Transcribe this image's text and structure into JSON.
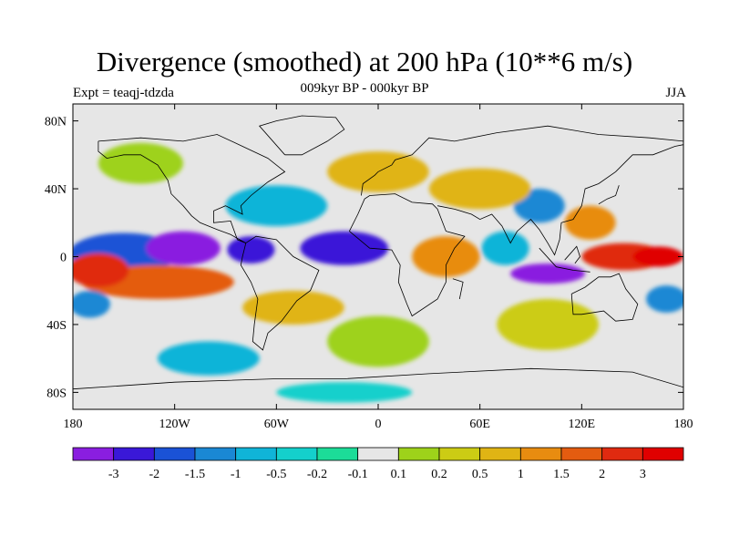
{
  "title": "Divergence (smoothed) at 200 hPa (10**6 m/s)",
  "subtitle": "009kyr BP - 000kyr BP",
  "left_label": "Expt = teaqj-tdzda",
  "right_label": "JJA",
  "axes": {
    "lat_ticks": [
      "80N",
      "40N",
      "0",
      "40S",
      "80S"
    ],
    "lat_values": [
      80,
      40,
      0,
      -40,
      -80
    ],
    "lon_ticks": [
      "180",
      "120W",
      "60W",
      "0",
      "60E",
      "120E",
      "180"
    ],
    "lon_values": [
      -180,
      -120,
      -60,
      0,
      60,
      120,
      180
    ]
  },
  "colorbar": {
    "labels": [
      "-3",
      "-2",
      "-1.5",
      "-1",
      "-0.5",
      "-0.2",
      "-0.1",
      "0.1",
      "0.2",
      "0.5",
      "1",
      "1.5",
      "2",
      "3"
    ],
    "colors": [
      "#8a1ee0",
      "#3a18d8",
      "#1a52d6",
      "#1a88d4",
      "#10b4d8",
      "#14d0cc",
      "#1cdc98",
      "#e6e6e6",
      "#9ed21a",
      "#cccc14",
      "#e0b414",
      "#e88c10",
      "#e45c10",
      "#e02a10",
      "#e00000"
    ]
  },
  "map_data": {
    "blobs": [
      {
        "lon": -150,
        "lat": 2,
        "rlon": 32,
        "rlat": 12,
        "c": 2
      },
      {
        "lon": -115,
        "lat": 5,
        "rlon": 22,
        "rlat": 10,
        "c": 0
      },
      {
        "lon": -75,
        "lat": 4,
        "rlon": 14,
        "rlat": 8,
        "c": 1
      },
      {
        "lon": -20,
        "lat": 5,
        "rlon": 26,
        "rlat": 10,
        "c": 1
      },
      {
        "lon": -130,
        "lat": -15,
        "rlon": 45,
        "rlat": 10,
        "c": 12
      },
      {
        "lon": -165,
        "lat": -8,
        "rlon": 18,
        "rlat": 10,
        "c": 13
      },
      {
        "lon": -50,
        "lat": -30,
        "rlon": 30,
        "rlat": 10,
        "c": 10
      },
      {
        "lon": 40,
        "lat": 0,
        "rlon": 20,
        "rlat": 12,
        "c": 11
      },
      {
        "lon": 100,
        "lat": -10,
        "rlon": 22,
        "rlat": 6,
        "c": 0
      },
      {
        "lon": 75,
        "lat": 5,
        "rlon": 14,
        "rlat": 10,
        "c": 4
      },
      {
        "lon": 145,
        "lat": 0,
        "rlon": 25,
        "rlat": 8,
        "c": 13
      },
      {
        "lon": 165,
        "lat": 0,
        "rlon": 15,
        "rlat": 6,
        "c": 14
      },
      {
        "lon": 95,
        "lat": 30,
        "rlon": 15,
        "rlat": 10,
        "c": 3
      },
      {
        "lon": 125,
        "lat": 20,
        "rlon": 15,
        "rlat": 10,
        "c": 11
      },
      {
        "lon": -170,
        "lat": -28,
        "rlon": 12,
        "rlat": 8,
        "c": 3
      },
      {
        "lon": 170,
        "lat": -25,
        "rlon": 12,
        "rlat": 8,
        "c": 3
      },
      {
        "lon": -60,
        "lat": 30,
        "rlon": 30,
        "rlat": 12,
        "c": 4
      },
      {
        "lon": 0,
        "lat": 50,
        "rlon": 30,
        "rlat": 12,
        "c": 10
      },
      {
        "lon": 60,
        "lat": 40,
        "rlon": 30,
        "rlat": 12,
        "c": 10
      },
      {
        "lon": -140,
        "lat": 55,
        "rlon": 25,
        "rlat": 12,
        "c": 8
      },
      {
        "lon": 0,
        "lat": -50,
        "rlon": 30,
        "rlat": 15,
        "c": 8
      },
      {
        "lon": 100,
        "lat": -40,
        "rlon": 30,
        "rlat": 15,
        "c": 9
      },
      {
        "lon": -100,
        "lat": -60,
        "rlon": 30,
        "rlat": 10,
        "c": 4
      },
      {
        "lon": -20,
        "lat": -80,
        "rlon": 40,
        "rlat": 6,
        "c": 5
      }
    ],
    "coasts": [
      [
        [
          -165,
          68
        ],
        [
          -140,
          70
        ],
        [
          -115,
          68
        ],
        [
          -95,
          72
        ],
        [
          -80,
          65
        ],
        [
          -65,
          58
        ],
        [
          -55,
          50
        ],
        [
          -65,
          44
        ],
        [
          -75,
          36
        ],
        [
          -81,
          30
        ],
        [
          -80,
          25
        ],
        [
          -90,
          30
        ],
        [
          -97,
          27
        ],
        [
          -97,
          20
        ],
        [
          -87,
          21
        ],
        [
          -83,
          10
        ],
        [
          -78,
          8
        ],
        [
          -80,
          0
        ],
        [
          -81,
          -5
        ],
        [
          -75,
          -15
        ],
        [
          -71,
          -25
        ],
        [
          -73,
          -40
        ],
        [
          -74,
          -50
        ],
        [
          -68,
          -55
        ],
        [
          -65,
          -45
        ],
        [
          -57,
          -38
        ],
        [
          -48,
          -26
        ],
        [
          -40,
          -20
        ],
        [
          -35,
          -8
        ],
        [
          -50,
          0
        ],
        [
          -60,
          10
        ],
        [
          -72,
          12
        ],
        [
          -78,
          8
        ]
      ],
      [
        [
          -78,
          8
        ],
        [
          -87,
          13
        ],
        [
          -95,
          16
        ],
        [
          -105,
          20
        ],
        [
          -110,
          24
        ],
        [
          -115,
          30
        ],
        [
          -122,
          37
        ],
        [
          -124,
          45
        ],
        [
          -130,
          54
        ],
        [
          -140,
          60
        ],
        [
          -150,
          60
        ],
        [
          -160,
          58
        ],
        [
          -165,
          62
        ],
        [
          -165,
          68
        ]
      ],
      [
        [
          -17,
          15
        ],
        [
          -12,
          25
        ],
        [
          -8,
          34
        ],
        [
          -5,
          36
        ],
        [
          10,
          37
        ],
        [
          20,
          32
        ],
        [
          32,
          31
        ],
        [
          35,
          28
        ],
        [
          40,
          15
        ],
        [
          51,
          12
        ],
        [
          45,
          5
        ],
        [
          40,
          -5
        ],
        [
          40,
          -15
        ],
        [
          35,
          -25
        ],
        [
          20,
          -35
        ],
        [
          17,
          -28
        ],
        [
          12,
          -15
        ],
        [
          13,
          -5
        ],
        [
          8,
          4
        ],
        [
          -5,
          5
        ],
        [
          -17,
          15
        ]
      ],
      [
        [
          -10,
          36
        ],
        [
          -9,
          43
        ],
        [
          -2,
          48
        ],
        [
          0,
          50
        ],
        [
          8,
          54
        ],
        [
          10,
          57
        ],
        [
          20,
          60
        ],
        [
          25,
          65
        ],
        [
          30,
          70
        ],
        [
          45,
          68
        ],
        [
          70,
          73
        ],
        [
          100,
          77
        ],
        [
          130,
          72
        ],
        [
          160,
          70
        ],
        [
          180,
          68
        ]
      ],
      [
        [
          35,
          30
        ],
        [
          45,
          28
        ],
        [
          55,
          25
        ],
        [
          60,
          22
        ],
        [
          67,
          25
        ],
        [
          73,
          18
        ],
        [
          78,
          8
        ],
        [
          82,
          15
        ],
        [
          90,
          22
        ],
        [
          95,
          16
        ],
        [
          100,
          8
        ],
        [
          104,
          1
        ],
        [
          107,
          10
        ],
        [
          108,
          20
        ],
        [
          115,
          22
        ],
        [
          120,
          30
        ],
        [
          122,
          40
        ],
        [
          130,
          43
        ],
        [
          140,
          50
        ],
        [
          150,
          60
        ],
        [
          162,
          60
        ],
        [
          175,
          65
        ],
        [
          180,
          66
        ]
      ],
      [
        [
          114,
          -22
        ],
        [
          122,
          -18
        ],
        [
          130,
          -12
        ],
        [
          137,
          -12
        ],
        [
          142,
          -10
        ],
        [
          146,
          -19
        ],
        [
          153,
          -28
        ],
        [
          150,
          -37
        ],
        [
          140,
          -38
        ],
        [
          133,
          -32
        ],
        [
          120,
          -34
        ],
        [
          115,
          -34
        ],
        [
          114,
          -22
        ]
      ],
      [
        [
          -55,
          60
        ],
        [
          -45,
          60
        ],
        [
          -30,
          68
        ],
        [
          -20,
          75
        ],
        [
          -25,
          82
        ],
        [
          -45,
          83
        ],
        [
          -60,
          80
        ],
        [
          -70,
          77
        ],
        [
          -55,
          60
        ]
      ],
      [
        [
          -180,
          -78
        ],
        [
          -120,
          -74
        ],
        [
          -60,
          -72
        ],
        [
          -20,
          -72
        ],
        [
          30,
          -69
        ],
        [
          90,
          -66
        ],
        [
          150,
          -68
        ],
        [
          180,
          -77
        ]
      ],
      [
        [
          95,
          5
        ],
        [
          105,
          -6
        ],
        [
          115,
          -8
        ],
        [
          125,
          -9
        ]
      ],
      [
        [
          110,
          -2
        ],
        [
          117,
          6
        ],
        [
          119,
          0
        ],
        [
          116,
          -4
        ]
      ],
      [
        [
          130,
          31
        ],
        [
          135,
          34
        ],
        [
          140,
          36
        ],
        [
          142,
          42
        ]
      ],
      [
        [
          44,
          -13
        ],
        [
          50,
          -15
        ],
        [
          48,
          -25
        ]
      ]
    ]
  }
}
